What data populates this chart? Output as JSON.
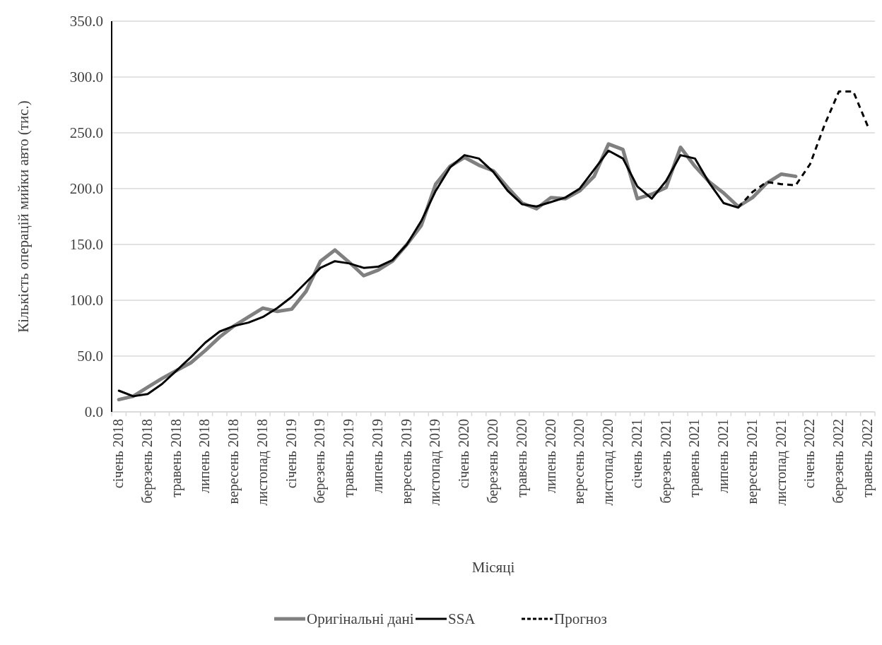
{
  "chart_data": {
    "type": "line",
    "xlabel": "Місяці",
    "ylabel": "Кількість операцій мийки авто (тис.)",
    "categories": [
      "січень 2018",
      null,
      "березень 2018",
      null,
      "травень 2018",
      null,
      "липень 2018",
      null,
      "вересень 2018",
      null,
      "листопад 2018",
      null,
      "січень 2019",
      null,
      "березень 2019",
      null,
      "травень 2019",
      null,
      "липень 2019",
      null,
      "вересень 2019",
      null,
      "листопад 2019",
      null,
      "січень 2020",
      null,
      "березень 2020",
      null,
      "травень 2020",
      null,
      "липень 2020",
      null,
      "вересень 2020",
      null,
      "листопад 2020",
      null,
      "січень 2021",
      null,
      "березень 2021",
      null,
      "травень 2021",
      null,
      "липень 2021",
      null,
      "вересень 2021",
      null,
      "листопад 2021",
      null,
      "січень 2022",
      null,
      "березень 2022",
      null,
      "травень 2022"
    ],
    "ylim": [
      0,
      350
    ],
    "yticks": [
      {
        "value": 0,
        "label": "0.0"
      },
      {
        "value": 50,
        "label": "50.0"
      },
      {
        "value": 100,
        "label": "100.0"
      },
      {
        "value": 150,
        "label": "150.0"
      },
      {
        "value": 200,
        "label": "200.0"
      },
      {
        "value": 250,
        "label": "250.0"
      },
      {
        "value": 300,
        "label": "300.0"
      },
      {
        "value": 350,
        "label": "350.0"
      }
    ],
    "grid": "y",
    "legend": "bottom",
    "marker": "none",
    "series": [
      {
        "name": "Оригінальні дані",
        "color": "#808080",
        "line_style": "solid",
        "values": [
          11,
          14,
          22,
          30,
          37,
          44,
          55,
          67,
          77,
          85,
          93,
          90,
          92,
          108,
          135,
          145,
          134,
          122,
          127,
          135,
          150,
          167,
          204,
          220,
          228,
          221,
          216,
          201,
          187,
          182,
          192,
          191,
          198,
          211,
          240,
          235,
          191,
          195,
          201,
          237,
          220,
          206,
          196,
          184,
          192,
          205,
          213,
          211,
          null,
          null,
          null,
          null,
          null
        ]
      },
      {
        "name": "SSA",
        "color": "#000000",
        "line_style": "solid",
        "values": [
          19,
          14,
          16,
          25,
          37,
          49,
          62,
          72,
          77,
          80,
          85,
          93,
          103,
          116,
          129,
          135,
          133,
          129,
          130,
          136,
          150,
          171,
          198,
          219,
          230,
          227,
          215,
          198,
          186,
          184,
          188,
          192,
          200,
          217,
          234,
          227,
          202,
          191,
          207,
          230,
          227,
          205,
          187,
          183,
          null,
          null,
          null,
          null,
          null,
          null,
          null,
          null,
          null
        ]
      },
      {
        "name": "Прогноз",
        "color": "#000000",
        "line_style": "dashed",
        "values": [
          null,
          null,
          null,
          null,
          null,
          null,
          null,
          null,
          null,
          null,
          null,
          null,
          null,
          null,
          null,
          null,
          null,
          null,
          null,
          null,
          null,
          null,
          null,
          null,
          null,
          null,
          null,
          null,
          null,
          null,
          null,
          null,
          null,
          null,
          null,
          null,
          null,
          null,
          null,
          null,
          null,
          null,
          null,
          183,
          197,
          206,
          204,
          203,
          222,
          257,
          287,
          287,
          256
        ]
      }
    ]
  }
}
